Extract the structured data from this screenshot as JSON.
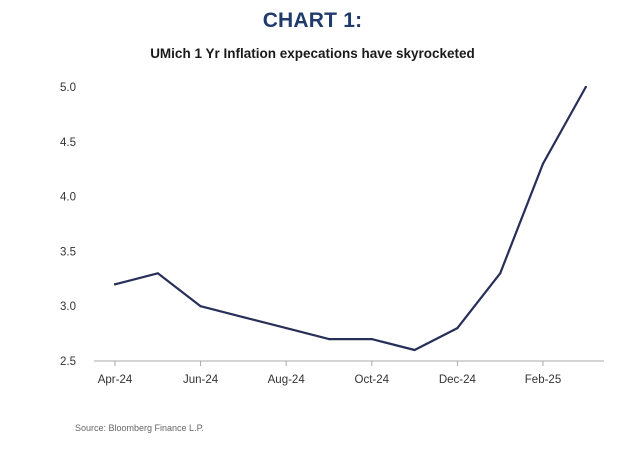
{
  "header": {
    "title": "CHART 1:",
    "subtitle": "UMich 1 Yr Inflation expecations have skyrocketed"
  },
  "footer": {
    "source": "Source: Bloomberg Finance L.P."
  },
  "colors": {
    "line": "#28305a",
    "title": "#1f3a6b",
    "axis": "#aaaaaa",
    "tick_text": "#333333"
  },
  "chart_data": {
    "type": "line",
    "title": "UMich 1 Yr Inflation expecations have skyrocketed",
    "xlabel": "",
    "ylabel": "",
    "x": [
      "2024-04",
      "2024-05",
      "2024-06",
      "2024-07",
      "2024-08",
      "2024-09",
      "2024-10",
      "2024-11",
      "2024-12",
      "2025-01",
      "2025-02",
      "2025-03"
    ],
    "series": [
      {
        "values": [
          3.2,
          3.3,
          3.0,
          2.9,
          2.8,
          2.7,
          2.7,
          2.6,
          2.8,
          3.3,
          4.3,
          5.0
        ]
      }
    ],
    "x_tick_labels": [
      "Apr-24",
      "Jun-24",
      "Aug-24",
      "Oct-24",
      "Dec-24",
      "Feb-25"
    ],
    "x_tick_positions": [
      "2024-04",
      "2024-06",
      "2024-08",
      "2024-10",
      "2024-12",
      "2025-02"
    ],
    "y_tick_labels": [
      "2.5",
      "3.0",
      "3.5",
      "4.0",
      "4.5",
      "5.0"
    ],
    "y_tick_values": [
      2.5,
      3.0,
      3.5,
      4.0,
      4.5,
      5.0
    ],
    "ylim": [
      2.5,
      5.0
    ],
    "grid": false,
    "legend": "none"
  }
}
